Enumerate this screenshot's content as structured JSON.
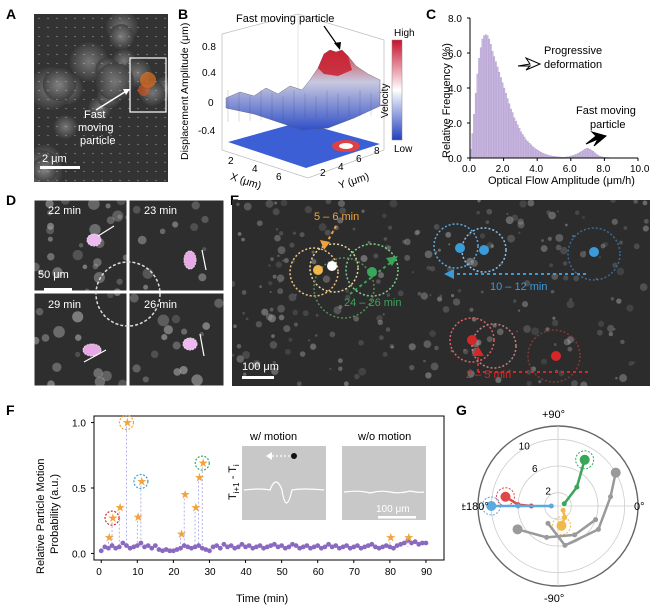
{
  "labels": {
    "A": "A",
    "B": "B",
    "C": "C",
    "D": "D",
    "E": "E",
    "F": "F",
    "G": "G"
  },
  "panelA": {
    "annotation": "Fast\nmoving\nparticle",
    "scalebar": "2 μm"
  },
  "panelB": {
    "title": "Fast moving particle",
    "zlabel": "Displacement Amplitude (μm)",
    "zticks": [
      "0.8",
      "0.4",
      "0",
      "-0.4"
    ],
    "xlabel": "X (μm)",
    "xticks": [
      "2",
      "4",
      "6"
    ],
    "ylabel": "Y (μm)",
    "yticks": [
      "2",
      "4",
      "6",
      "8"
    ],
    "colorbar_title": "Velocity",
    "colorbar_high": "High",
    "colorbar_low": "Low"
  },
  "panelD": {
    "frames": [
      "22 min",
      "23 min",
      "29 min",
      "26 min"
    ],
    "scalebar": "50 μm"
  },
  "panelE": {
    "labels": [
      "5 – 6 min",
      "10 – 12 min",
      "24 – 26 min",
      "2 – 5 min"
    ],
    "scalebar": "100 μm"
  },
  "chart_data": [
    {
      "id": "C",
      "type": "bar",
      "xlabel": "Optical Flow Amplitude (μm/h)",
      "ylabel": "Relative Frequency (%)",
      "xlim": [
        0,
        10
      ],
      "ylim": [
        0,
        8
      ],
      "xticks": [
        "0.0",
        "2.0",
        "4.0",
        "6.0",
        "8.0",
        "10.0"
      ],
      "yticks": [
        "0.0",
        "2.0",
        "4.0",
        "6.0",
        "8.0"
      ],
      "annotations": [
        "Progressive\ndeformation",
        "Fast moving\nparticle"
      ],
      "bin_width": 0.1,
      "bin_start": 0.0,
      "values": [
        0.5,
        1.4,
        2.5,
        3.7,
        4.8,
        5.7,
        6.3,
        6.8,
        7.0,
        7.05,
        7.0,
        6.8,
        6.5,
        6.1,
        5.8,
        5.5,
        5.2,
        4.9,
        4.6,
        4.3,
        4.0,
        3.7,
        3.4,
        3.1,
        2.8,
        2.6,
        2.3,
        2.1,
        1.9,
        1.7,
        1.5,
        1.35,
        1.2,
        1.05,
        0.95,
        0.85,
        0.75,
        0.65,
        0.58,
        0.5,
        0.44,
        0.38,
        0.33,
        0.28,
        0.24,
        0.2,
        0.17,
        0.14,
        0.12,
        0.1,
        0.09,
        0.08,
        0.07,
        0.06,
        0.05,
        0.05,
        0.05,
        0.06,
        0.07,
        0.09,
        0.12,
        0.15,
        0.18,
        0.22,
        0.27,
        0.32,
        0.38,
        0.45,
        0.5,
        0.55,
        0.55,
        0.5,
        0.45,
        0.38,
        0.3,
        0.22,
        0.15,
        0.1,
        0.07,
        0.05,
        0.04,
        0.03,
        0.03,
        0.02,
        0.02,
        0.02,
        0.01,
        0.01,
        0.01,
        0.01
      ]
    },
    {
      "id": "F",
      "type": "scatter",
      "xlabel": "Time (min)",
      "ylabel": "Relative Particle Motion\nProbability (a.u.)",
      "xlim": [
        -2,
        95
      ],
      "ylim": [
        -0.05,
        1.05
      ],
      "xticks": [
        "0",
        "10",
        "20",
        "30",
        "40",
        "50",
        "60",
        "70",
        "80",
        "90"
      ],
      "yticks": [
        "0.0",
        "0.5",
        "1.0"
      ],
      "x": [
        0,
        1,
        2,
        3,
        4,
        5,
        6,
        7,
        8,
        9,
        10,
        11,
        12,
        13,
        14,
        15,
        16,
        17,
        18,
        19,
        20,
        21,
        22,
        23,
        24,
        25,
        26,
        27,
        28,
        29,
        30,
        31,
        32,
        33,
        34,
        35,
        36,
        37,
        38,
        39,
        40,
        41,
        42,
        43,
        44,
        45,
        46,
        47,
        48,
        49,
        50,
        51,
        52,
        53,
        54,
        55,
        56,
        57,
        58,
        59,
        60,
        61,
        62,
        63,
        64,
        65,
        66,
        67,
        68,
        69,
        70,
        71,
        72,
        73,
        74,
        75,
        76,
        77,
        78,
        79,
        80,
        81,
        82,
        83,
        84,
        85,
        86,
        87,
        88,
        89,
        90
      ],
      "y": [
        0.02,
        0.05,
        0.04,
        0.06,
        0.04,
        0.05,
        0.08,
        0.06,
        0.04,
        0.05,
        0.06,
        0.08,
        0.05,
        0.06,
        0.04,
        0.06,
        0.03,
        0.02,
        0.03,
        0.02,
        0.02,
        0.03,
        0.04,
        0.06,
        0.05,
        0.04,
        0.05,
        0.06,
        0.04,
        0.03,
        0.02,
        0.05,
        0.06,
        0.04,
        0.07,
        0.05,
        0.06,
        0.04,
        0.05,
        0.07,
        0.05,
        0.06,
        0.04,
        0.05,
        0.06,
        0.04,
        0.05,
        0.06,
        0.07,
        0.05,
        0.06,
        0.04,
        0.05,
        0.07,
        0.06,
        0.04,
        0.05,
        0.06,
        0.04,
        0.05,
        0.06,
        0.04,
        0.05,
        0.07,
        0.05,
        0.06,
        0.04,
        0.05,
        0.06,
        0.04,
        0.05,
        0.06,
        0.04,
        0.05,
        0.06,
        0.07,
        0.05,
        0.04,
        0.05,
        0.06,
        0.05,
        0.04,
        0.06,
        0.07,
        0.08,
        0.1,
        0.08,
        0.09,
        0.07,
        0.08,
        0.08
      ],
      "star_x": [
        2,
        3,
        5,
        7,
        10,
        11,
        22,
        23,
        26,
        27,
        28,
        80,
        85
      ],
      "star_y": [
        0.12,
        0.27,
        0.35,
        1.0,
        0.28,
        0.55,
        0.15,
        0.45,
        0.35,
        0.58,
        0.69,
        0.12,
        0.12
      ],
      "circled_x": [
        3,
        7,
        11,
        28
      ],
      "circled_y": [
        0.27,
        1.0,
        0.55,
        0.69
      ],
      "circled_colors": [
        "#d62728",
        "#f2a33a",
        "#3a9bd9",
        "#3aa65a"
      ]
    },
    {
      "id": "G",
      "type": "scatter",
      "subtype": "polar",
      "angle_labels": [
        "+90°",
        "0°",
        "-90°",
        "±180°"
      ],
      "radial_ticks": [
        "2",
        "6",
        "10"
      ],
      "rmax": 12,
      "series": [
        {
          "color": "#e04848",
          "points": [
            [
              170,
              8
            ],
            [
              178,
              6
            ],
            [
              180,
              4
            ]
          ]
        },
        {
          "color": "#5aaae0",
          "points": [
            [
              180,
              10
            ],
            [
              180,
              6
            ],
            [
              180,
              1
            ]
          ]
        },
        {
          "color": "#3aa65a",
          "points": [
            [
              60,
              8
            ],
            [
              45,
              4
            ],
            [
              20,
              1
            ]
          ]
        },
        {
          "color": "#f2b84a",
          "points": [
            [
              -80,
              3
            ],
            [
              -60,
              2
            ],
            [
              -40,
              1
            ]
          ]
        },
        {
          "color": "#9a9a9a",
          "points": [
            [
              30,
              10
            ],
            [
              10,
              8
            ],
            [
              -30,
              7
            ],
            [
              -80,
              6
            ],
            [
              -120,
              3
            ]
          ]
        },
        {
          "color": "#9a9a9a",
          "points": [
            [
              -150,
              7
            ],
            [
              -110,
              5
            ],
            [
              -60,
              5
            ],
            [
              -20,
              6
            ]
          ]
        }
      ]
    }
  ],
  "panelF_insets": {
    "with_motion": "w/ motion",
    "without_motion": "w/o motion",
    "formula": "T",
    "formula_sub1": "i+1",
    "formula_mid": " - T",
    "formula_sub2": "i",
    "scalebar": "100 μm"
  }
}
